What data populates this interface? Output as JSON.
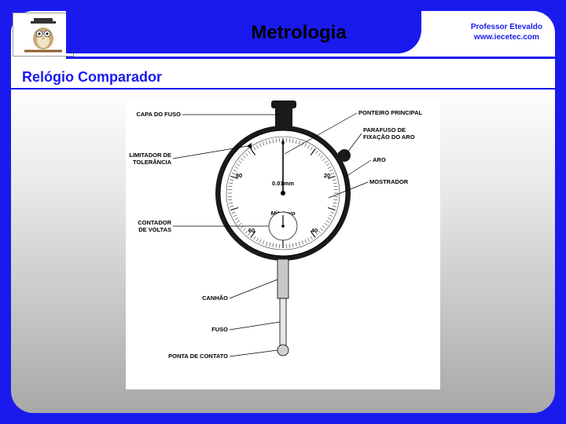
{
  "header": {
    "title": "Metrologia",
    "author_line1": "Professor Etevaldo",
    "author_line2": "www.iecetec.com"
  },
  "subtitle": "Relógio Comparador",
  "diagram": {
    "type": "labeled-technical-diagram",
    "background": "#ffffff",
    "dial_outer_stroke": "#000000",
    "dial_fill": "#ffffff",
    "body_fill": "#1a1a1a",
    "leader_stroke": "#000000",
    "center_text": "0.01mm",
    "brand_text": "Mitutoyo",
    "labels": {
      "capa_do_fuso": "CAPA DO FUSO",
      "limitador": "LIMITADOR DE TOLERÂNCIA",
      "contador": "CONTADOR DE VOLTAS",
      "ponteiro": "PONTEIRO PRINCIPAL",
      "parafuso": "PARAFUSO DE FIXAÇÃO DO ARO",
      "aro": "ARO",
      "mostrador": "MOSTRADOR",
      "canhao": "CANHÃO",
      "fuso": "FUSO",
      "ponta": "PONTA DE CONTATO"
    }
  },
  "colors": {
    "frame": "#1a1aee",
    "panel_top": "#ffffff",
    "panel_bottom": "#a8a8a8"
  }
}
